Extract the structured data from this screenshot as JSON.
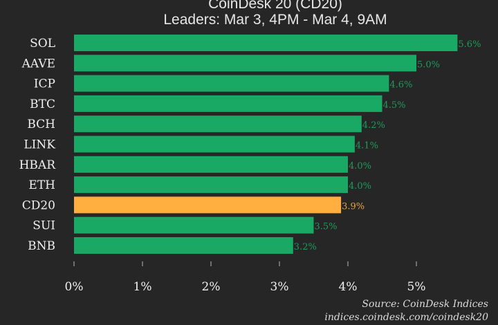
{
  "chart_data": {
    "type": "bar",
    "orientation": "horizontal",
    "title": "CoinDesk 20 (CD20)",
    "subtitle": "Leaders: Mar 3, 4PM - Mar 4, 9AM",
    "categories": [
      "SOL",
      "AAVE",
      "ICP",
      "BTC",
      "BCH",
      "LINK",
      "HBAR",
      "ETH",
      "CD20",
      "SUI",
      "BNB"
    ],
    "values": [
      5.6,
      5.0,
      4.6,
      4.5,
      4.2,
      4.1,
      4.0,
      4.0,
      3.9,
      3.5,
      3.2
    ],
    "value_labels": [
      "5.6%",
      "5.0%",
      "4.6%",
      "4.5%",
      "4.2%",
      "4.1%",
      "4.0%",
      "4.0%",
      "3.9%",
      "3.5%",
      "3.2%"
    ],
    "highlight": "CD20",
    "xlim": [
      0,
      5.7
    ],
    "xticks": [
      0,
      1,
      2,
      3,
      4,
      5
    ],
    "xtick_labels": [
      "0%",
      "1%",
      "2%",
      "3%",
      "4%",
      "5%"
    ],
    "xlabel": "",
    "ylabel": "",
    "grid": false,
    "colors": {
      "bar": "#1aa865",
      "highlight": "#ffae3f",
      "label": "#1f9a5c",
      "highlight_label": "#e7a445",
      "text": "#f0f0f0",
      "background": "#262626"
    }
  },
  "source": {
    "line1": "Source: CoinDesk Indices",
    "line2": "indices.coindesk.com/coindesk20"
  }
}
